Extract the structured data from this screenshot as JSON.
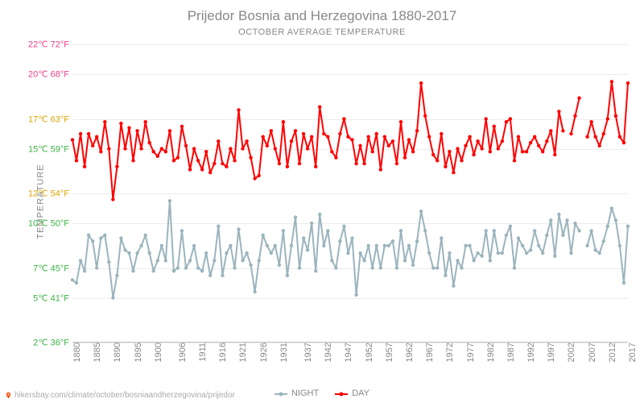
{
  "title": "Prijedor Bosnia and Herzegovina 1880-2017",
  "subtitle": "OCTOBER AVERAGE TEMPERATURE",
  "ylabel": "TEMPERATURE",
  "footer": {
    "icon_color": "#ff4d00",
    "text": "hikersbay.com/climate/october/bosniaandherzegovina/prijedor"
  },
  "legend": {
    "night": {
      "label": "NIGHT",
      "color": "#9bb4bd"
    },
    "day": {
      "label": "DAY",
      "color": "#ff0000"
    }
  },
  "chart": {
    "type": "line",
    "background_color": "#ffffff",
    "grid_color": "#ececec",
    "axis_color": "#bfbfbf",
    "line_width": 2,
    "marker_radius": 2.2,
    "ylim": [
      2,
      22
    ],
    "yticks": [
      {
        "v": 2,
        "label": "2℃ 36°F",
        "color": "#3cb043"
      },
      {
        "v": 5,
        "label": "5℃ 41°F",
        "color": "#3cb043"
      },
      {
        "v": 7,
        "label": "7℃ 45°F",
        "color": "#3cb043"
      },
      {
        "v": 10,
        "label": "10℃ 50°F",
        "color": "#3cb043"
      },
      {
        "v": 12,
        "label": "12℃ 54°F",
        "color": "#d9a400"
      },
      {
        "v": 15,
        "label": "15℃ 59°F",
        "color": "#3cb043"
      },
      {
        "v": 17,
        "label": "17℃ 63°F",
        "color": "#d9a400"
      },
      {
        "v": 20,
        "label": "20℃ 68°F",
        "color": "#e83e8c"
      },
      {
        "v": 22,
        "label": "22℃ 72°F",
        "color": "#e83e8c"
      }
    ],
    "xticks": [
      1880,
      1885,
      1890,
      1895,
      1900,
      1906,
      1911,
      1916,
      1921,
      1926,
      1931,
      1937,
      1942,
      1947,
      1952,
      1957,
      1962,
      1967,
      1972,
      1977,
      1982,
      1987,
      1992,
      1997,
      2002,
      2007,
      2012,
      2017
    ],
    "years_range": [
      1880,
      2017
    ],
    "series": {
      "day": {
        "color": "#ff0000",
        "segments": [
          {
            "start_year": 1880,
            "values": [
              15.6,
              14.2,
              16.0,
              13.8,
              16.0,
              15.2,
              15.8,
              14.8,
              16.8,
              15.0,
              11.6,
              13.8,
              16.7,
              15.0,
              16.4,
              14.2,
              16.2,
              15.0,
              16.8,
              15.4,
              14.8,
              14.5,
              15.0,
              14.8,
              16.2,
              14.2,
              14.4,
              16.5,
              15.2,
              13.6,
              15.0,
              14.2,
              13.6,
              14.8,
              13.4,
              14.0,
              15.5,
              14.0,
              13.8,
              15.0,
              14.2,
              17.6,
              15.0,
              15.5,
              14.4,
              13.0,
              13.2,
              15.8,
              15.2,
              16.2,
              15.0,
              14.0,
              16.8,
              13.8,
              15.5,
              16.2,
              14.0,
              16.0,
              15.0,
              15.8,
              13.8,
              17.8,
              16.0,
              15.8,
              14.8,
              14.4,
              16.0,
              17.0,
              15.8,
              15.6,
              14.0,
              15.2,
              14.0,
              15.8,
              14.8,
              16.0,
              13.6,
              15.8,
              15.2,
              15.5,
              14.0,
              16.8,
              14.4,
              15.6,
              14.8,
              16.2,
              19.4,
              17.2,
              15.8,
              14.6,
              14.2,
              16.0,
              13.8,
              14.8,
              13.4,
              15.0,
              14.2,
              15.2,
              15.8,
              14.6,
              15.5,
              15.0,
              17.0,
              14.8,
              16.5,
              15.0,
              15.5,
              16.8,
              17.0,
              14.2,
              15.8,
              14.8,
              14.8,
              15.4,
              15.8,
              15.2,
              14.8,
              15.5,
              16.2,
              14.6,
              17.5,
              16.2
            ]
          },
          {
            "start_year": 2003,
            "values": [
              16.0,
              17.2,
              18.4
            ]
          },
          {
            "start_year": 2007,
            "values": [
              15.8,
              16.8,
              15.8,
              15.2,
              16.0,
              17.0,
              19.5,
              17.2,
              15.8,
              15.4,
              19.4
            ]
          }
        ]
      },
      "night": {
        "color": "#9bb4bd",
        "segments": [
          {
            "start_year": 1880,
            "values": [
              6.2,
              6.0,
              7.5,
              6.8,
              9.2,
              8.8,
              7.0,
              9.0,
              9.2,
              7.4,
              5.0,
              6.5,
              9.0,
              8.2,
              8.0,
              6.8,
              8.0,
              8.5,
              9.2,
              8.0,
              6.8,
              7.5,
              8.5,
              7.5,
              11.5,
              6.8,
              7.0,
              9.5,
              7.0,
              7.5,
              8.5,
              7.0,
              6.8,
              8.0,
              6.5,
              7.5,
              9.8,
              6.5,
              8.0,
              8.5,
              7.0,
              9.6,
              7.5,
              8.0,
              7.2,
              5.4,
              7.5,
              9.2,
              8.5,
              8.0,
              8.5,
              7.2,
              9.5,
              6.5,
              8.5,
              10.4,
              7.0,
              9.0,
              8.2,
              10.0,
              6.8,
              10.6,
              8.5,
              9.5,
              7.5,
              7.0,
              8.8,
              9.8,
              8.0,
              9.0,
              5.2,
              8.0,
              7.5,
              8.5,
              7.0,
              8.5,
              7.0,
              8.5,
              8.5,
              8.8,
              7.0,
              9.5,
              7.5,
              8.5,
              7.2,
              8.8,
              10.8,
              9.5,
              8.0,
              7.0,
              7.0,
              9.0,
              6.5,
              8.0,
              5.8,
              7.5,
              7.0,
              8.5,
              8.5,
              7.5,
              8.0,
              7.8,
              9.5,
              7.5,
              9.5,
              8.0,
              8.0,
              9.2,
              9.8,
              7.0,
              9.0,
              8.5,
              8.0,
              8.2,
              9.5,
              8.5,
              8.0,
              9.2,
              10.2,
              7.8,
              10.6,
              9.2,
              10.2,
              8.0,
              10.0,
              9.5
            ]
          },
          {
            "start_year": 2007,
            "values": [
              8.5,
              9.5,
              8.2,
              8.0,
              8.8,
              9.8,
              11.0,
              10.2,
              8.5,
              6.0,
              9.8
            ]
          }
        ]
      }
    }
  }
}
